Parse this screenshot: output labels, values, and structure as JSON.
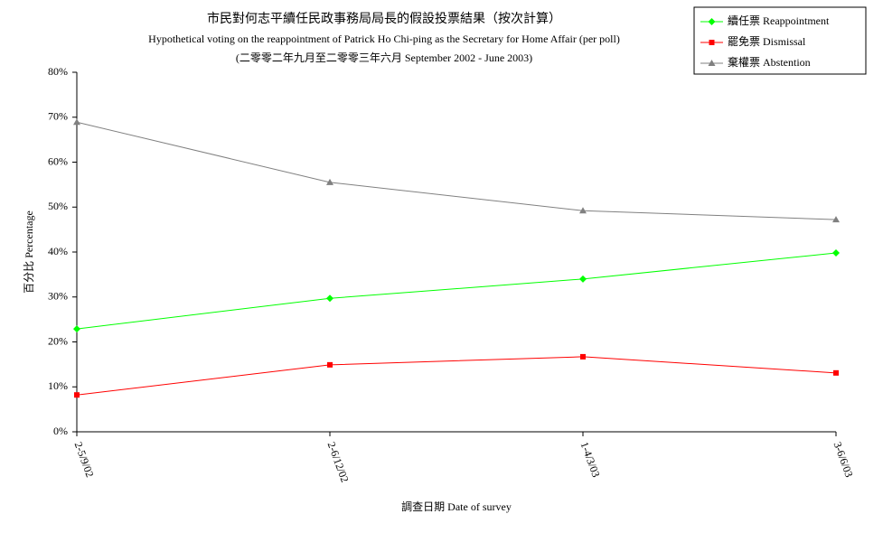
{
  "chart_data": {
    "type": "line",
    "title": "市民對何志平續任民政事務局局長的假設投票結果（按次計算）",
    "subtitles": [
      "Hypothetical voting on the reappointment of Patrick Ho Chi-ping as the Secretary for Home Affair (per poll)",
      "(二零零二年九月至二零零三年六月 September 2002 - June 2003)"
    ],
    "x_label": "調查日期 Date of survey",
    "y_label": "百分比 Percentage",
    "categories": [
      "2-5/9/02",
      "2-6/12/02",
      "1-4/3/03",
      "3-6/6/03"
    ],
    "series": [
      {
        "name": "續任票 Reappointment",
        "color": "#00ff00",
        "marker": "diamond",
        "values": [
          22.9,
          29.7,
          34.0,
          39.8
        ]
      },
      {
        "name": "罷免票 Dismissal",
        "color": "#ff0000",
        "marker": "square",
        "values": [
          8.2,
          14.9,
          16.7,
          13.1
        ]
      },
      {
        "name": "棄權票 Abstention",
        "color": "#808080",
        "marker": "triangle",
        "values": [
          68.9,
          55.5,
          49.2,
          47.2
        ]
      }
    ],
    "ylim": [
      0,
      80
    ],
    "yticks": [
      {
        "value": 0,
        "label": "0%"
      },
      {
        "value": 10,
        "label": "10%"
      },
      {
        "value": 20,
        "label": "20%"
      },
      {
        "value": 30,
        "label": "30%"
      },
      {
        "value": 40,
        "label": "40%"
      },
      {
        "value": 50,
        "label": "50%"
      },
      {
        "value": 60,
        "label": "60%"
      },
      {
        "value": 70,
        "label": "70%"
      },
      {
        "value": 80,
        "label": "80%"
      }
    ],
    "grid": false,
    "legend": "top-right"
  }
}
